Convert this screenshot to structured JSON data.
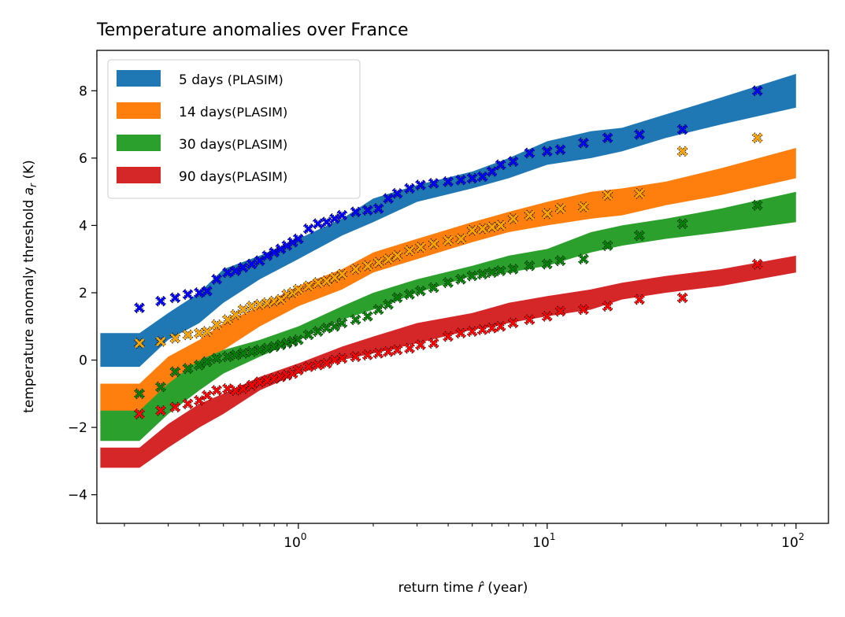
{
  "chart_data": {
    "type": "area+scatter",
    "title": "Temperature anomalies over France",
    "xlabel_main": "return time ",
    "xlabel_sym": "r̂",
    "xlabel_unit": " (year)",
    "ylabel_main": "temperature anomaly threshold ",
    "ylabel_sym": "a",
    "ylabel_sub": "r",
    "ylabel_unit": " (K)",
    "xscale": "log",
    "xlim": [
      0.155,
      135
    ],
    "ylim": [
      -4.85,
      9.2
    ],
    "xticks_major": [
      {
        "value": 1,
        "base": "10",
        "exp": "0"
      },
      {
        "value": 10,
        "base": "10",
        "exp": "1"
      },
      {
        "value": 100,
        "base": "10",
        "exp": "2"
      }
    ],
    "yticks": [
      {
        "value": -4,
        "label": "−4"
      },
      {
        "value": -2,
        "label": "−2"
      },
      {
        "value": 0,
        "label": "0"
      },
      {
        "value": 2,
        "label": "2"
      },
      {
        "value": 4,
        "label": "4"
      },
      {
        "value": 6,
        "label": "6"
      },
      {
        "value": 8,
        "label": "8"
      }
    ],
    "legend_position": "top-left",
    "series": [
      {
        "name": "5 days",
        "label_main": "5 days ",
        "label_sub": "(PLASIM)",
        "color": "#1f77b4",
        "marker_color": "#0000ff",
        "band_x": [
          0.16,
          0.23,
          0.3,
          0.4,
          0.5,
          0.7,
          1.0,
          1.5,
          2.0,
          3.0,
          5.0,
          7.0,
          10,
          15,
          20,
          30,
          50,
          100
        ],
        "band_low": [
          -0.2,
          -0.2,
          0.6,
          1.1,
          1.7,
          2.4,
          3.0,
          3.7,
          4.1,
          4.7,
          5.1,
          5.4,
          5.8,
          6.0,
          6.2,
          6.6,
          7.0,
          7.5
        ],
        "band_high": [
          0.8,
          0.8,
          1.4,
          2.0,
          2.7,
          3.1,
          3.6,
          4.2,
          4.8,
          5.2,
          5.6,
          6.0,
          6.5,
          6.8,
          6.9,
          7.3,
          7.8,
          8.5
        ],
        "points_x": [
          0.23,
          0.28,
          0.32,
          0.36,
          0.4,
          0.43,
          0.47,
          0.52,
          0.56,
          0.6,
          0.65,
          0.7,
          0.75,
          0.8,
          0.85,
          0.9,
          0.95,
          1.0,
          1.1,
          1.2,
          1.3,
          1.4,
          1.5,
          1.7,
          1.9,
          2.1,
          2.3,
          2.5,
          2.8,
          3.1,
          3.5,
          4.0,
          4.5,
          5.0,
          5.5,
          6.0,
          6.5,
          7.3,
          8.5,
          10,
          11.3,
          14,
          17.5,
          23.5,
          35,
          70
        ],
        "points_y": [
          1.55,
          1.75,
          1.85,
          1.95,
          2.0,
          2.05,
          2.4,
          2.6,
          2.65,
          2.75,
          2.85,
          2.95,
          3.1,
          3.2,
          3.3,
          3.4,
          3.5,
          3.6,
          3.9,
          4.05,
          4.1,
          4.2,
          4.3,
          4.4,
          4.45,
          4.5,
          4.8,
          4.95,
          5.1,
          5.2,
          5.25,
          5.3,
          5.35,
          5.4,
          5.45,
          5.6,
          5.8,
          5.9,
          6.15,
          6.2,
          6.25,
          6.45,
          6.6,
          6.7,
          6.85,
          8.0
        ]
      },
      {
        "name": "14 days",
        "label_main": "14 days",
        "label_sub": "(PLASIM)",
        "color": "#ff7f0e",
        "marker_color": "#ffa500",
        "band_x": [
          0.16,
          0.23,
          0.3,
          0.4,
          0.5,
          0.7,
          1.0,
          1.5,
          2.0,
          3.0,
          5.0,
          7.0,
          10,
          15,
          20,
          30,
          50,
          100
        ],
        "band_low": [
          -1.7,
          -1.7,
          -0.9,
          -0.3,
          0.3,
          1.0,
          1.6,
          2.1,
          2.6,
          3.0,
          3.5,
          3.8,
          4.0,
          4.2,
          4.3,
          4.6,
          4.9,
          5.4
        ],
        "band_high": [
          -0.7,
          -0.7,
          0.1,
          0.6,
          1.1,
          1.6,
          2.2,
          2.7,
          3.2,
          3.6,
          4.1,
          4.4,
          4.7,
          5.0,
          5.1,
          5.3,
          5.7,
          6.3
        ],
        "points_x": [
          0.23,
          0.28,
          0.32,
          0.36,
          0.4,
          0.43,
          0.47,
          0.52,
          0.56,
          0.6,
          0.65,
          0.7,
          0.75,
          0.8,
          0.85,
          0.9,
          0.95,
          1.0,
          1.1,
          1.2,
          1.3,
          1.4,
          1.5,
          1.7,
          1.9,
          2.1,
          2.3,
          2.5,
          2.8,
          3.1,
          3.5,
          4.0,
          4.5,
          5.0,
          5.5,
          6.0,
          6.5,
          7.3,
          8.5,
          10,
          11.3,
          14,
          17.5,
          23.5,
          35,
          70
        ],
        "points_y": [
          0.5,
          0.55,
          0.65,
          0.75,
          0.8,
          0.85,
          1.05,
          1.2,
          1.35,
          1.5,
          1.6,
          1.65,
          1.7,
          1.75,
          1.8,
          1.95,
          2.0,
          2.1,
          2.2,
          2.3,
          2.35,
          2.45,
          2.55,
          2.7,
          2.8,
          2.9,
          3.0,
          3.1,
          3.25,
          3.35,
          3.45,
          3.55,
          3.6,
          3.85,
          3.9,
          3.95,
          4.0,
          4.2,
          4.3,
          4.35,
          4.5,
          4.55,
          4.9,
          4.95,
          6.2,
          6.6
        ]
      },
      {
        "name": "30 days",
        "label_main": "30 days",
        "label_sub": "(PLASIM)",
        "color": "#2ca02c",
        "marker_color": "#008000",
        "band_x": [
          0.16,
          0.23,
          0.3,
          0.4,
          0.5,
          0.7,
          1.0,
          1.5,
          2.0,
          3.0,
          5.0,
          7.0,
          10,
          15,
          20,
          30,
          50,
          100
        ],
        "band_low": [
          -2.4,
          -2.4,
          -1.6,
          -0.9,
          -0.4,
          0.1,
          0.6,
          1.2,
          1.5,
          2.0,
          2.5,
          2.6,
          2.8,
          3.2,
          3.4,
          3.6,
          3.8,
          4.1
        ],
        "band_high": [
          -1.5,
          -1.5,
          -0.7,
          0.0,
          0.3,
          0.6,
          1.0,
          1.6,
          2.0,
          2.4,
          2.8,
          3.1,
          3.3,
          3.8,
          4.0,
          4.2,
          4.5,
          5.0
        ],
        "points_x": [
          0.23,
          0.28,
          0.32,
          0.36,
          0.4,
          0.43,
          0.47,
          0.52,
          0.56,
          0.6,
          0.65,
          0.7,
          0.75,
          0.8,
          0.85,
          0.9,
          0.95,
          1.0,
          1.1,
          1.2,
          1.3,
          1.4,
          1.5,
          1.7,
          1.9,
          2.1,
          2.3,
          2.5,
          2.8,
          3.1,
          3.5,
          4.0,
          4.5,
          5.0,
          5.5,
          6.0,
          6.5,
          7.3,
          8.5,
          10,
          11.3,
          14,
          17.5,
          23.5,
          35,
          70
        ],
        "points_y": [
          -1.0,
          -0.8,
          -0.35,
          -0.25,
          -0.15,
          -0.05,
          0.05,
          0.1,
          0.15,
          0.2,
          0.25,
          0.3,
          0.35,
          0.4,
          0.45,
          0.5,
          0.55,
          0.6,
          0.75,
          0.85,
          0.95,
          1.0,
          1.1,
          1.2,
          1.3,
          1.5,
          1.65,
          1.85,
          1.95,
          2.05,
          2.15,
          2.3,
          2.4,
          2.5,
          2.55,
          2.6,
          2.65,
          2.7,
          2.8,
          2.85,
          2.95,
          3.0,
          3.4,
          3.7,
          4.05,
          4.6
        ]
      },
      {
        "name": "90 days",
        "label_main": "90 days",
        "label_sub": "(PLASIM)",
        "color": "#d62728",
        "marker_color": "#ff0000",
        "band_x": [
          0.16,
          0.23,
          0.3,
          0.4,
          0.5,
          0.7,
          1.0,
          1.5,
          2.0,
          3.0,
          5.0,
          7.0,
          10,
          15,
          20,
          30,
          50,
          100
        ],
        "band_low": [
          -3.2,
          -3.2,
          -2.6,
          -2.0,
          -1.6,
          -0.9,
          -0.4,
          0.0,
          0.2,
          0.5,
          0.9,
          1.1,
          1.3,
          1.5,
          1.8,
          2.0,
          2.2,
          2.6
        ],
        "band_high": [
          -2.6,
          -2.6,
          -1.9,
          -1.3,
          -1.0,
          -0.5,
          -0.1,
          0.4,
          0.7,
          1.1,
          1.4,
          1.7,
          1.9,
          2.1,
          2.3,
          2.5,
          2.7,
          3.1
        ],
        "points_x": [
          0.23,
          0.28,
          0.32,
          0.36,
          0.4,
          0.43,
          0.47,
          0.52,
          0.56,
          0.6,
          0.65,
          0.7,
          0.75,
          0.8,
          0.85,
          0.9,
          0.95,
          1.0,
          1.1,
          1.2,
          1.3,
          1.4,
          1.5,
          1.7,
          1.9,
          2.1,
          2.3,
          2.5,
          2.8,
          3.1,
          3.5,
          4.0,
          4.5,
          5.0,
          5.5,
          6.0,
          6.5,
          7.3,
          8.5,
          10,
          11.3,
          14,
          17.5,
          23.5,
          35,
          70
        ],
        "points_y": [
          -1.6,
          -1.5,
          -1.4,
          -1.3,
          -1.2,
          -1.05,
          -0.9,
          -0.85,
          -0.9,
          -0.85,
          -0.75,
          -0.65,
          -0.6,
          -0.55,
          -0.5,
          -0.45,
          -0.4,
          -0.3,
          -0.2,
          -0.15,
          -0.1,
          0.0,
          0.05,
          0.1,
          0.15,
          0.2,
          0.25,
          0.3,
          0.35,
          0.45,
          0.5,
          0.7,
          0.8,
          0.85,
          0.9,
          0.95,
          1.0,
          1.1,
          1.2,
          1.3,
          1.45,
          1.5,
          1.6,
          1.8,
          1.85,
          2.85
        ]
      }
    ]
  }
}
